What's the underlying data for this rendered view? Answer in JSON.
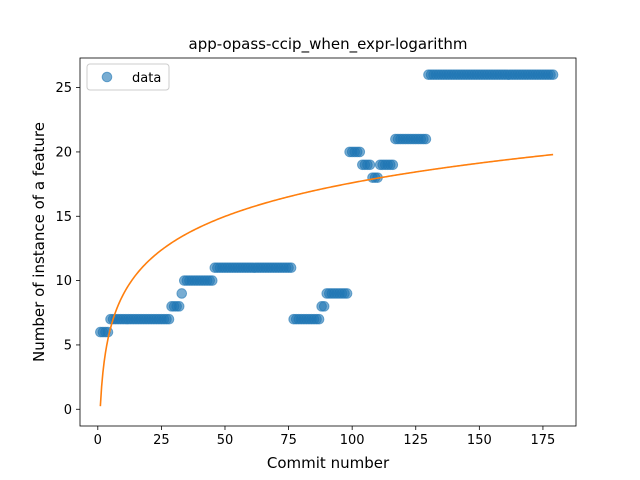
{
  "chart_data": {
    "type": "scatter",
    "title": "app-opass-ccip_when_expr-logarithm",
    "xlabel": "Commit number",
    "ylabel": "Number of instance of a feature",
    "xlim": [
      -7,
      188
    ],
    "ylim": [
      -1.3,
      27.3
    ],
    "xticks": [
      0,
      25,
      50,
      75,
      100,
      125,
      150,
      175
    ],
    "yticks": [
      0,
      5,
      10,
      15,
      20,
      25
    ],
    "grid": false,
    "legend": {
      "placement": "top-left",
      "entries": [
        "data"
      ]
    },
    "colors": {
      "data": "#1f77b4",
      "fit": "#ff7f0e"
    },
    "series": [
      {
        "name": "data",
        "kind": "scatter",
        "segments": [
          {
            "x_start": 1,
            "x_end": 4,
            "y": 6
          },
          {
            "x_start": 5,
            "x_end": 28,
            "y": 7
          },
          {
            "x_start": 29,
            "x_end": 32,
            "y": 8
          },
          {
            "x_start": 33,
            "x_end": 33,
            "y": 9
          },
          {
            "x_start": 34,
            "x_end": 45,
            "y": 10
          },
          {
            "x_start": 46,
            "x_end": 76,
            "y": 11
          },
          {
            "x_start": 77,
            "x_end": 87,
            "y": 7
          },
          {
            "x_start": 88,
            "x_end": 89,
            "y": 8
          },
          {
            "x_start": 90,
            "x_end": 98,
            "y": 9
          },
          {
            "x_start": 99,
            "x_end": 103,
            "y": 20
          },
          {
            "x_start": 104,
            "x_end": 107,
            "y": 19
          },
          {
            "x_start": 108,
            "x_end": 110,
            "y": 18
          },
          {
            "x_start": 111,
            "x_end": 116,
            "y": 19
          },
          {
            "x_start": 117,
            "x_end": 129,
            "y": 21
          },
          {
            "x_start": 130,
            "x_end": 179,
            "y": 26
          }
        ]
      },
      {
        "kind": "line",
        "model": "logarithmic",
        "a": 0.24,
        "b": 3.77,
        "x_range": [
          1,
          179
        ]
      }
    ]
  }
}
